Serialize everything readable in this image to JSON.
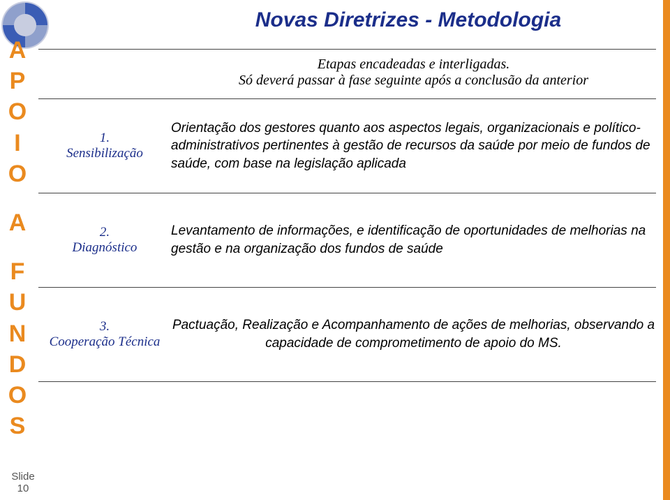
{
  "colors": {
    "title": "#1b2e8a",
    "sidebar_letter": "#ea8a1f",
    "phase_label": "#1b2e8a",
    "body_text": "#000000",
    "right_stripe": "#ea8a1f",
    "logo_inner": "#3b5db5",
    "logo_outer": "#c8cde0",
    "footer": "#555555"
  },
  "sizes": {
    "title_fontsize": 30,
    "sidebar_letter_fontsize": 34,
    "phase_label_fontsize": 19,
    "intro_fontsize": 20,
    "body_fontsize": 19,
    "footer_fontsize": 15
  },
  "title": "Novas Diretrizes - Metodologia",
  "sidebar": {
    "group1": [
      "A",
      "P",
      "O",
      "I",
      "O"
    ],
    "group2": [
      "A"
    ],
    "group3": [
      "F",
      "U",
      "N",
      "D",
      "O",
      "S"
    ]
  },
  "intro": {
    "line1": "Etapas encadeadas e interligadas.",
    "line2": "Só deverá passar à fase seguinte após a conclusão da anterior"
  },
  "phases": [
    {
      "num": "1.",
      "label": "Sensibilização",
      "desc": "Orientação dos gestores quanto aos aspectos legais, organizacionais e político-administrativos pertinentes à gestão de recursos da saúde por meio de fundos de saúde, com base na legislação aplicada"
    },
    {
      "num": "2.",
      "label": "Diagnóstico",
      "desc": "Levantamento de informações, e identificação de oportunidades de melhorias na gestão e na organização dos fundos de saúde"
    },
    {
      "num": "3.",
      "label": "Cooperação Técnica",
      "desc": "Pactuação, Realização e Acompanhamento de ações de melhorias, observando a capacidade de comprometimento de apoio do MS."
    }
  ],
  "footer": {
    "label": "Slide",
    "num": "10"
  }
}
